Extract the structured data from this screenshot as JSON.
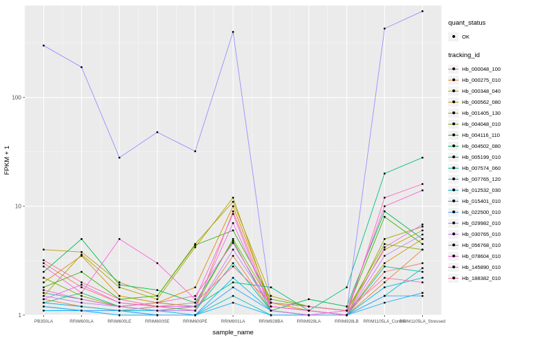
{
  "figure": {
    "background": "#FFFFFF",
    "panel_background": "#EBEBEB",
    "grid_major_color": "#FFFFFF",
    "grid_minor_color": "#F7F7F7",
    "axis_text_color": "#4D4D4D",
    "point_color": "#000000"
  },
  "chart_data": {
    "type": "line",
    "title": "",
    "xlabel": "sample_name",
    "ylabel": "FPKM + 1",
    "y_scale": "log10",
    "y_ticks": [
      1,
      10,
      100
    ],
    "ylim": [
      1,
      700
    ],
    "grid": true,
    "legend_position": "right",
    "legend_quant_title": "quant_status",
    "legend_quant_item": "OK",
    "legend_tracking_title": "tracking_id",
    "categories": [
      "PB350LA",
      "RRIM600LA",
      "RRIM600LE",
      "RRIM600SE",
      "RRIM600PE",
      "RRIM901LA",
      "RRIM928BA",
      "RRIM928LA",
      "RRIM928LB",
      "RRIM1105LA_Control",
      "RRIM1105LA_Stressed"
    ],
    "series": [
      {
        "name": "Hb_000048_100",
        "color": "#F8766D",
        "values": [
          3.0,
          1.8,
          1.3,
          1.2,
          1.1,
          9.0,
          1.2,
          1.1,
          1.0,
          2.5,
          3.0
        ]
      },
      {
        "name": "Hb_000275_010",
        "color": "#EA8331",
        "values": [
          1.4,
          1.2,
          1.1,
          1.2,
          1.1,
          3.5,
          1.1,
          1.0,
          1.0,
          2.0,
          4.0
        ]
      },
      {
        "name": "Hb_000348_040",
        "color": "#D89000",
        "values": [
          2.0,
          3.5,
          1.5,
          1.3,
          1.8,
          10.0,
          1.3,
          1.1,
          1.0,
          3.0,
          5.0
        ]
      },
      {
        "name": "Hb_000562_080",
        "color": "#C09B00",
        "values": [
          4.0,
          3.8,
          2.0,
          1.5,
          4.5,
          11.0,
          1.5,
          1.2,
          1.1,
          4.0,
          6.0
        ]
      },
      {
        "name": "Hb_001405_130",
        "color": "#A3A500",
        "values": [
          1.5,
          3.6,
          1.8,
          1.4,
          4.2,
          12.0,
          1.2,
          1.1,
          1.0,
          5.0,
          6.5
        ]
      },
      {
        "name": "Hb_004048_010",
        "color": "#7CAE00",
        "values": [
          2.2,
          1.5,
          1.2,
          1.3,
          1.2,
          5.0,
          1.3,
          1.2,
          1.1,
          4.5,
          4.0
        ]
      },
      {
        "name": "Hb_004116_110",
        "color": "#39B600",
        "values": [
          1.8,
          2.5,
          1.4,
          1.5,
          4.4,
          6.0,
          1.4,
          1.2,
          1.1,
          8.0,
          4.5
        ]
      },
      {
        "name": "Hb_004502_080",
        "color": "#00BB4E",
        "values": [
          2.5,
          5.0,
          1.9,
          1.7,
          1.3,
          4.8,
          1.1,
          1.4,
          1.2,
          9.0,
          5.0
        ]
      },
      {
        "name": "Hb_005199_010",
        "color": "#00BF7D",
        "values": [
          1.3,
          1.6,
          1.2,
          1.1,
          1.2,
          2.0,
          1.8,
          1.1,
          1.8,
          20.0,
          28.0
        ]
      },
      {
        "name": "Hb_007574_060",
        "color": "#00C1A3",
        "values": [
          1.6,
          1.4,
          1.2,
          1.1,
          1.1,
          3.0,
          1.1,
          1.0,
          1.0,
          2.8,
          2.5
        ]
      },
      {
        "name": "Hb_007765_120",
        "color": "#00BFC4",
        "values": [
          1.2,
          1.1,
          1.1,
          1.0,
          1.0,
          1.5,
          1.0,
          1.0,
          1.0,
          1.5,
          2.7
        ]
      },
      {
        "name": "Hb_012532_030",
        "color": "#00BAE0",
        "values": [
          1.3,
          1.2,
          1.1,
          1.1,
          1.0,
          2.2,
          1.1,
          1.0,
          1.0,
          1.8,
          2.2
        ]
      },
      {
        "name": "Hb_015401_010",
        "color": "#00B0F6",
        "values": [
          1.1,
          1.1,
          1.0,
          1.0,
          1.0,
          1.3,
          1.0,
          1.0,
          1.0,
          1.3,
          1.6
        ]
      },
      {
        "name": "Hb_022500_010",
        "color": "#35A2FF",
        "values": [
          1.2,
          1.1,
          1.1,
          1.0,
          1.0,
          1.8,
          1.1,
          1.0,
          1.0,
          1.5,
          1.5
        ]
      },
      {
        "name": "Hb_029982_010",
        "color": "#9590FF",
        "values": [
          300,
          190,
          28,
          48,
          32,
          400,
          1.3,
          1.2,
          1.1,
          430,
          620
        ]
      },
      {
        "name": "Hb_030765_010",
        "color": "#C77CFF",
        "values": [
          1.5,
          1.3,
          1.2,
          1.1,
          1.1,
          4.0,
          1.2,
          1.1,
          1.0,
          3.5,
          5.5
        ]
      },
      {
        "name": "Hb_056768_010",
        "color": "#E76BF3",
        "values": [
          1.4,
          1.9,
          1.3,
          1.2,
          1.2,
          7.0,
          1.2,
          1.1,
          1.0,
          4.2,
          6.8
        ]
      },
      {
        "name": "Hb_078604_010",
        "color": "#FA62DB",
        "values": [
          2.8,
          1.6,
          5.0,
          3.0,
          1.4,
          8.5,
          1.1,
          1.0,
          1.1,
          10.0,
          14.0
        ]
      },
      {
        "name": "Hb_145890_010",
        "color": "#FF62BC",
        "values": [
          1.7,
          1.4,
          1.2,
          1.3,
          1.5,
          4.6,
          1.2,
          1.1,
          1.0,
          12.0,
          16.0
        ]
      },
      {
        "name": "Hb_188382_010",
        "color": "#FF6A98",
        "values": [
          3.2,
          2.0,
          1.4,
          1.2,
          1.3,
          2.8,
          1.3,
          1.2,
          1.1,
          2.2,
          2.0
        ]
      }
    ]
  }
}
